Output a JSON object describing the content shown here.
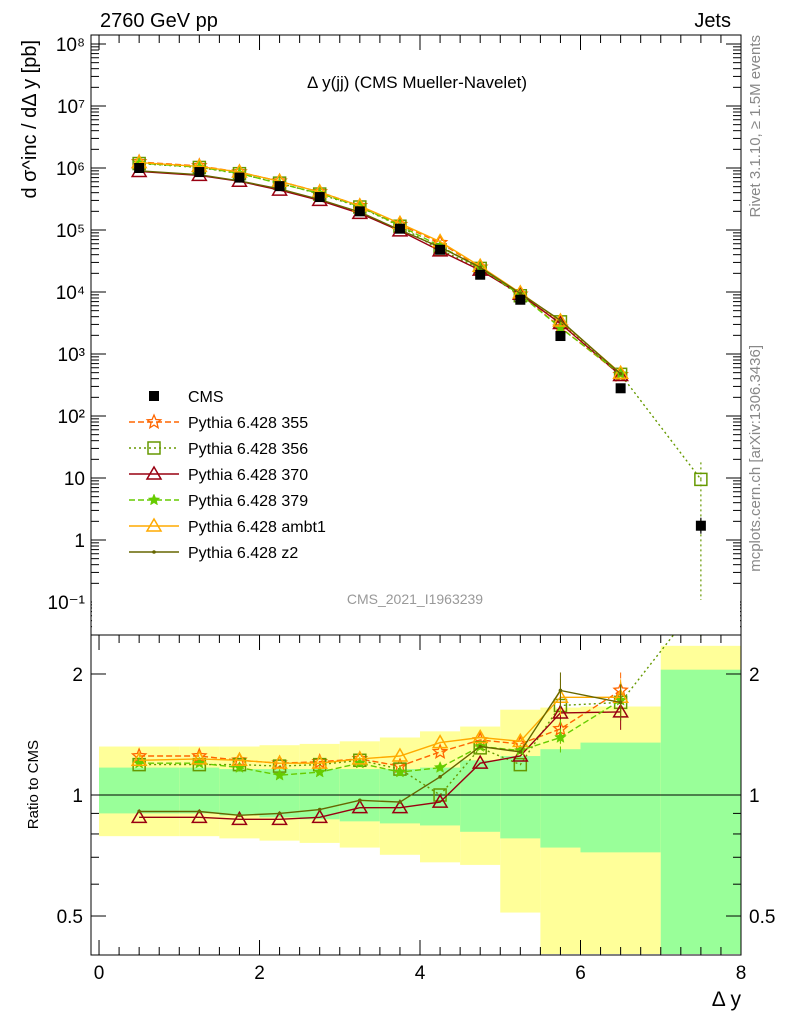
{
  "header": {
    "left_label": "2760 GeV pp",
    "right_label": "Jets",
    "side_label_top": "Rivet 3.1.10, ≥ 1.5M events",
    "side_label_bottom": "mcplots.cern.ch [arXiv:1306.3436]",
    "analysis_id": "CMS_2021_I1963239"
  },
  "chart_data": [
    {
      "type": "line",
      "title": "Δ y(jj) (CMS Mueller-Navelet)",
      "ylabel": "d σ^inc / dΔ y [pb]",
      "xlabel": "Δ y",
      "ylim": [
        0.03,
        160000000
      ],
      "xlim": [
        -0.1,
        8.0
      ],
      "yscale": "log",
      "legend_position": "lower-left",
      "y_tick_labels": [
        "10⁻¹",
        "1",
        "10",
        "10²",
        "10³",
        "10⁴",
        "10⁵",
        "10⁶",
        "10⁷",
        "10⁸"
      ],
      "x": [
        0.5,
        1.25,
        1.75,
        2.25,
        2.75,
        3.25,
        3.75,
        4.25,
        4.75,
        5.25,
        5.75,
        6.5,
        7.5
      ],
      "series": [
        {
          "name": "CMS",
          "color": "#000000",
          "marker": "square-filled",
          "values": [
            1000000,
            860000,
            700000,
            510000,
            340000,
            200000,
            105000,
            48000,
            19000,
            7500,
            1950,
            280,
            1.7
          ]
        },
        {
          "name": "Pythia 6.428 355",
          "color": "#ff6600",
          "marker": "star-open",
          "dash": "dashed",
          "values": [
            1250000,
            1080000,
            860000,
            610000,
            410000,
            245000,
            122000,
            62000,
            25000,
            9200,
            2700,
            460,
            null
          ]
        },
        {
          "name": "Pythia 6.428 356",
          "color": "#669900",
          "marker": "square-open",
          "dash": "dotted",
          "values": [
            1180000,
            1020000,
            810000,
            570000,
            380000,
            235000,
            115000,
            48000,
            24000,
            8700,
            3300,
            470,
            9.5
          ]
        },
        {
          "name": "Pythia 6.428 370",
          "color": "#990011",
          "marker": "triangle-open",
          "dash": "solid",
          "values": [
            880000,
            760000,
            610000,
            440000,
            300000,
            185000,
            97000,
            46000,
            22500,
            9200,
            3100,
            450,
            null
          ]
        },
        {
          "name": "Pythia 6.428 379",
          "color": "#66cc00",
          "marker": "star-filled",
          "dash": "dashed",
          "values": [
            1200000,
            1030000,
            820000,
            560000,
            390000,
            240000,
            117000,
            55000,
            24500,
            9000,
            2650,
            480,
            null
          ]
        },
        {
          "name": "Pythia 6.428 ambt1",
          "color": "#ffaa00",
          "marker": "triangle-open",
          "dash": "solid",
          "values": [
            1220000,
            1060000,
            860000,
            610000,
            410000,
            245000,
            128000,
            65000,
            26000,
            9700,
            3400,
            490,
            null
          ]
        },
        {
          "name": "Pythia 6.428 z2",
          "color": "#666600",
          "marker": "dot",
          "dash": "solid",
          "values": [
            900000,
            780000,
            620000,
            460000,
            310000,
            195000,
            100000,
            53000,
            25000,
            9500,
            3500,
            480,
            null
          ]
        }
      ]
    },
    {
      "type": "line",
      "ylabel": "Ratio to CMS",
      "xlabel": "Δ y",
      "ylim": [
        0.35,
        2.35
      ],
      "xlim": [
        -0.1,
        8.0
      ],
      "yscale": "log",
      "y_tick_labels": [
        "0.5",
        "1",
        "2"
      ],
      "x_tick_labels": [
        "0",
        "2",
        "4",
        "6",
        "8"
      ],
      "bin_edges": [
        0,
        1,
        1.5,
        2,
        2.5,
        3,
        3.5,
        4,
        4.5,
        5,
        5.5,
        6,
        7,
        8
      ],
      "band_stat": [
        [
          0.9,
          1.17
        ],
        [
          0.9,
          1.17
        ],
        [
          0.89,
          1.16
        ],
        [
          0.88,
          1.16
        ],
        [
          0.87,
          1.16
        ],
        [
          0.86,
          1.16
        ],
        [
          0.85,
          1.16
        ],
        [
          0.84,
          1.17
        ],
        [
          0.81,
          1.22
        ],
        [
          0.78,
          1.25
        ],
        [
          0.74,
          1.3
        ],
        [
          0.72,
          1.35
        ],
        [
          0.35,
          2.05
        ]
      ],
      "band_total": [
        [
          0.79,
          1.32
        ],
        [
          0.79,
          1.32
        ],
        [
          0.78,
          1.32
        ],
        [
          0.77,
          1.33
        ],
        [
          0.76,
          1.34
        ],
        [
          0.74,
          1.36
        ],
        [
          0.71,
          1.39
        ],
        [
          0.68,
          1.44
        ],
        [
          0.67,
          1.48
        ],
        [
          0.51,
          1.63
        ],
        [
          0.38,
          1.65
        ],
        [
          0.38,
          1.66
        ],
        [
          0.35,
          2.35
        ]
      ],
      "x": [
        0.5,
        1.25,
        1.75,
        2.25,
        2.75,
        3.25,
        3.75,
        4.25,
        4.75,
        5.25,
        5.75,
        6.5,
        7.5
      ],
      "series": [
        {
          "name": "Pythia 6.428 355",
          "values": [
            1.25,
            1.25,
            1.22,
            1.2,
            1.21,
            1.23,
            1.18,
            1.28,
            1.37,
            1.34,
            1.46,
            1.82,
            null
          ]
        },
        {
          "name": "Pythia 6.428 356",
          "values": [
            1.19,
            1.19,
            1.19,
            1.18,
            1.19,
            1.22,
            1.16,
            1.0,
            1.31,
            1.19,
            1.67,
            1.7,
            6.0
          ]
        },
        {
          "name": "Pythia 6.428 370",
          "values": [
            0.88,
            0.88,
            0.87,
            0.87,
            0.88,
            0.93,
            0.93,
            0.96,
            1.2,
            1.25,
            1.6,
            1.61,
            null
          ]
        },
        {
          "name": "Pythia 6.428 379",
          "values": [
            1.2,
            1.2,
            1.17,
            1.12,
            1.14,
            1.2,
            1.14,
            1.17,
            1.32,
            1.29,
            1.39,
            1.72,
            null
          ]
        },
        {
          "name": "Pythia 6.428 ambt1",
          "values": [
            1.22,
            1.23,
            1.22,
            1.2,
            1.2,
            1.23,
            1.25,
            1.35,
            1.39,
            1.36,
            1.75,
            1.75,
            null
          ]
        },
        {
          "name": "Pythia 6.428 z2",
          "values": [
            0.91,
            0.91,
            0.89,
            0.9,
            0.92,
            0.97,
            0.96,
            1.11,
            1.32,
            1.28,
            1.82,
            1.7,
            null
          ]
        }
      ]
    }
  ]
}
